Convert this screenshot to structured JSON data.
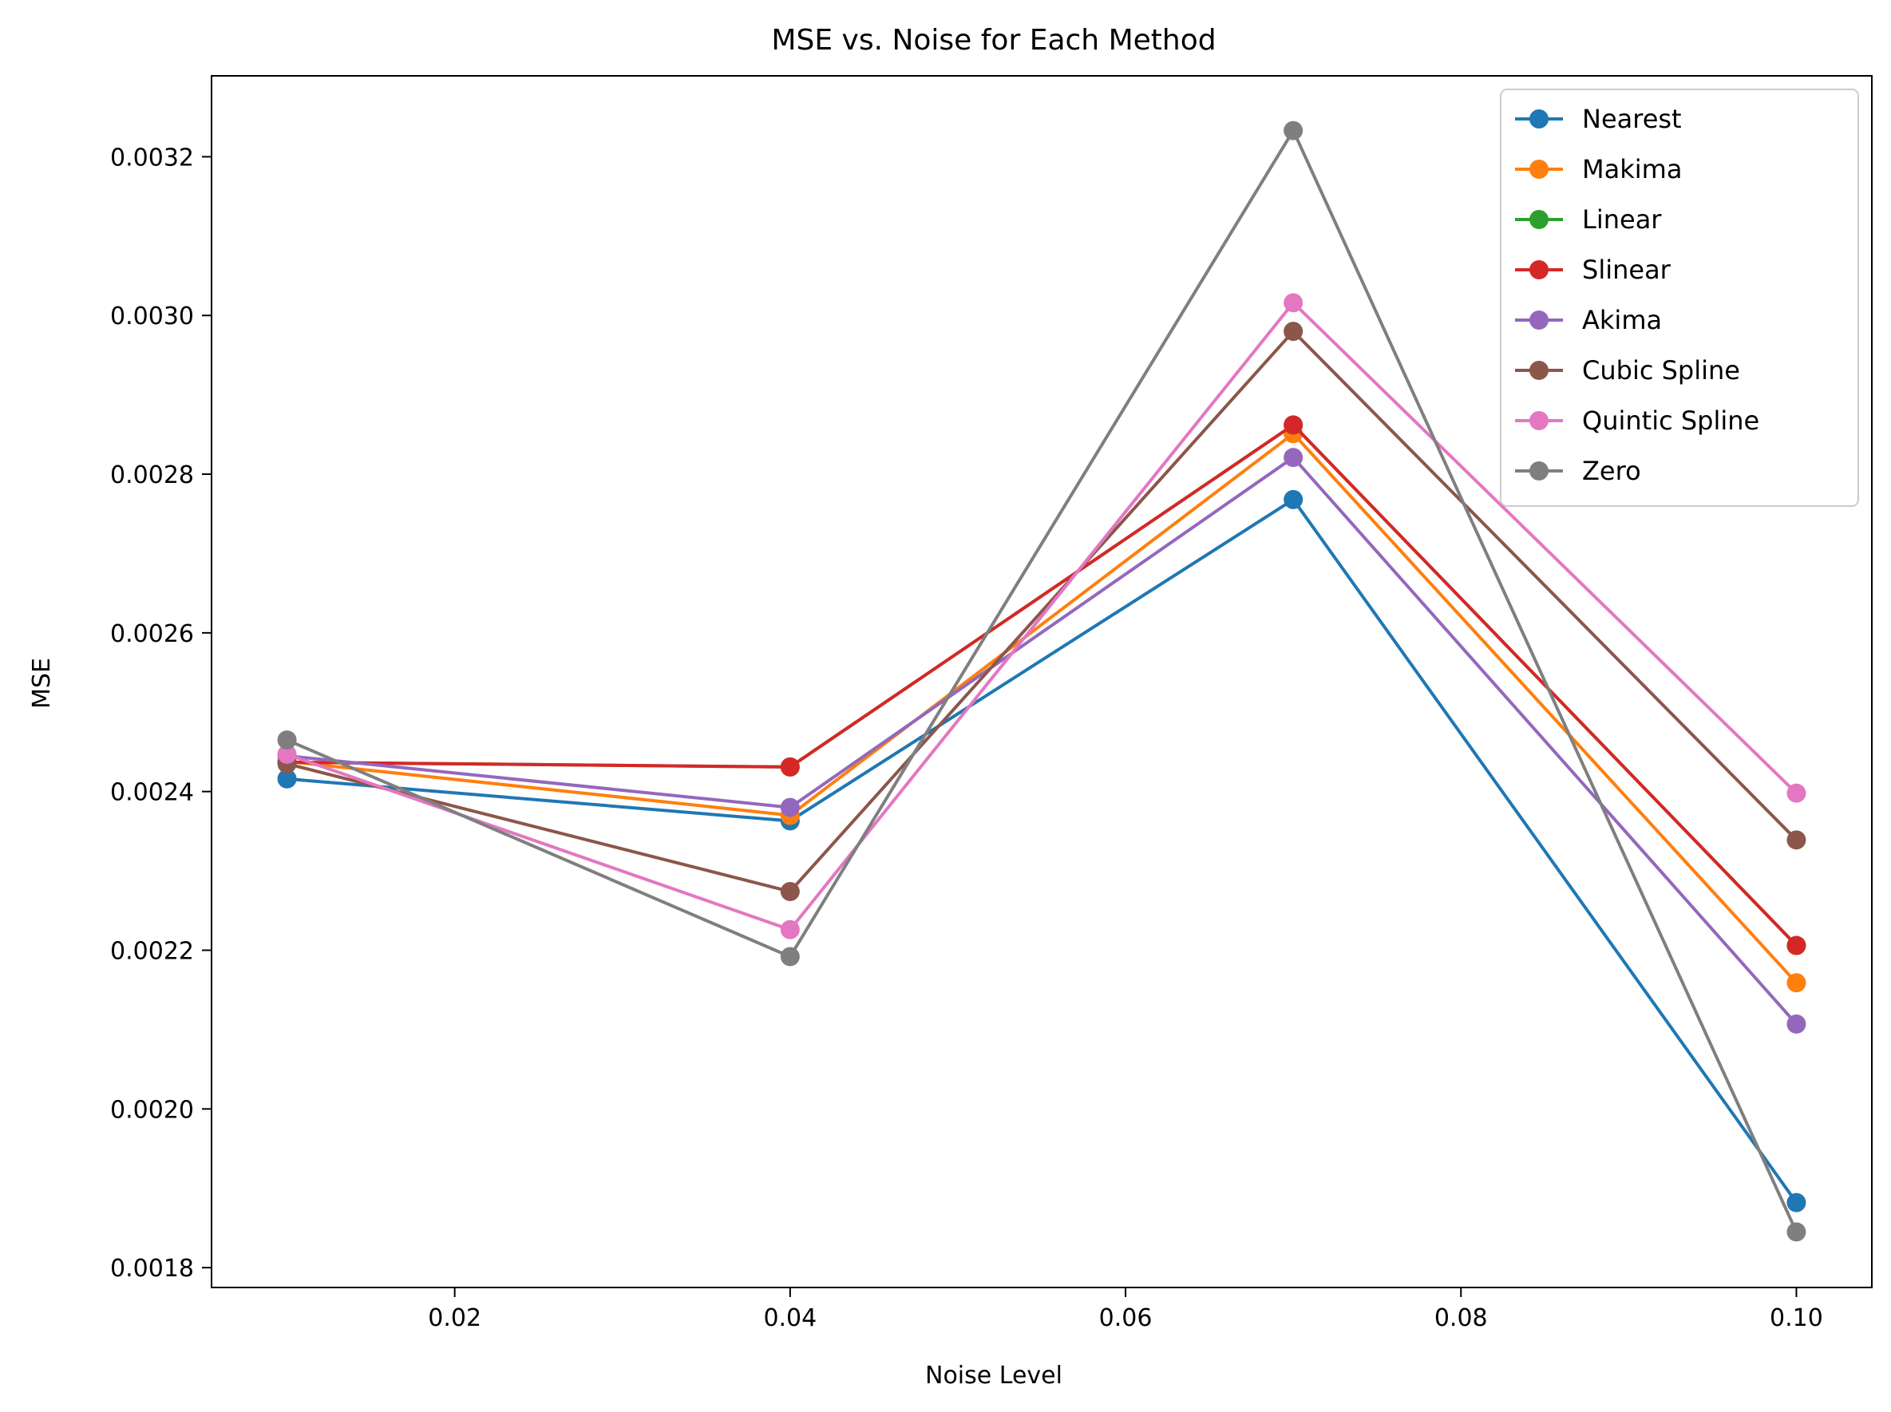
{
  "chart_data": {
    "type": "line",
    "title": "MSE vs. Noise for Each Method",
    "xlabel": "Noise Level",
    "ylabel": "MSE",
    "x": [
      0.01,
      0.04,
      0.07,
      0.1
    ],
    "xlim": [
      0.0055,
      0.1045
    ],
    "ylim": [
      0.001775,
      0.003302
    ],
    "xticks": [
      0.02,
      0.04,
      0.06,
      0.08,
      0.1
    ],
    "xtick_labels": [
      "0.02",
      "0.04",
      "0.06",
      "0.08",
      "0.10"
    ],
    "yticks": [
      0.0018,
      0.002,
      0.0022,
      0.0024,
      0.0026,
      0.0028,
      0.003,
      0.0032
    ],
    "ytick_labels": [
      "0.0018",
      "0.0020",
      "0.0022",
      "0.0024",
      "0.0026",
      "0.0028",
      "0.0030",
      "0.0032"
    ],
    "grid": false,
    "legend_position": "top-right",
    "series": [
      {
        "name": "Nearest",
        "color": "#1f77b4",
        "values": [
          0.002416,
          0.002363,
          0.002768,
          0.001882
        ]
      },
      {
        "name": "Makima",
        "color": "#ff7f0e",
        "values": [
          0.002438,
          0.00237,
          0.002851,
          0.002159
        ]
      },
      {
        "name": "Linear",
        "color": "#2ca02c",
        "values": [
          0.002437,
          0.002431,
          0.002862,
          0.002206
        ]
      },
      {
        "name": "Slinear",
        "color": "#d62728",
        "values": [
          0.002437,
          0.002431,
          0.002862,
          0.002206
        ]
      },
      {
        "name": "Akima",
        "color": "#9467bd",
        "values": [
          0.002445,
          0.00238,
          0.002821,
          0.002107
        ]
      },
      {
        "name": "Cubic Spline",
        "color": "#8c564b",
        "values": [
          0.002435,
          0.002274,
          0.00298,
          0.002339
        ]
      },
      {
        "name": "Quintic Spline",
        "color": "#e377c2",
        "values": [
          0.002447,
          0.002226,
          0.003016,
          0.002398
        ]
      },
      {
        "name": "Zero",
        "color": "#7f7f7f",
        "values": [
          0.002465,
          0.002192,
          0.003233,
          0.001845
        ]
      }
    ]
  }
}
